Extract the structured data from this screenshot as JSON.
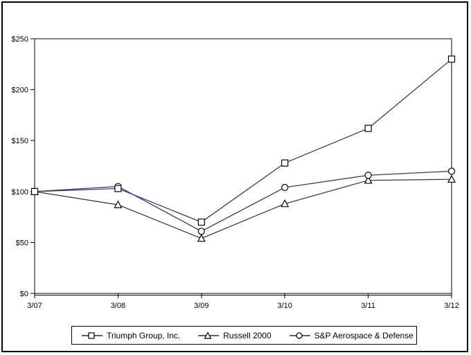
{
  "chart_data": {
    "type": "line",
    "title": "",
    "categories": [
      "3/07",
      "3/08",
      "3/09",
      "3/10",
      "3/11",
      "3/12"
    ],
    "series": [
      {
        "name": "Triumph Group, Inc.",
        "marker": "square",
        "color": "#38388C",
        "values": [
          100,
          103,
          70,
          128,
          162,
          230
        ]
      },
      {
        "name": "Russell 2000",
        "marker": "triangle",
        "color": "#404040",
        "values": [
          100,
          87,
          54,
          88,
          111,
          112
        ]
      },
      {
        "name": "S&P Aerospace & Defense",
        "marker": "circle",
        "color": "#404040",
        "values": [
          100,
          105,
          61,
          104,
          116,
          120
        ]
      }
    ],
    "ylim": [
      0,
      250
    ],
    "y_tick_values": [
      0,
      50,
      100,
      150,
      200,
      250
    ],
    "y_tick_labels": [
      "$0",
      "$50",
      "$100",
      "$150",
      "$200",
      "$250"
    ],
    "grid": false,
    "legend_position": "bottom",
    "axis_color": "#000000",
    "marker_fill": "#FFFFFF",
    "marker_stroke": "#000000"
  }
}
